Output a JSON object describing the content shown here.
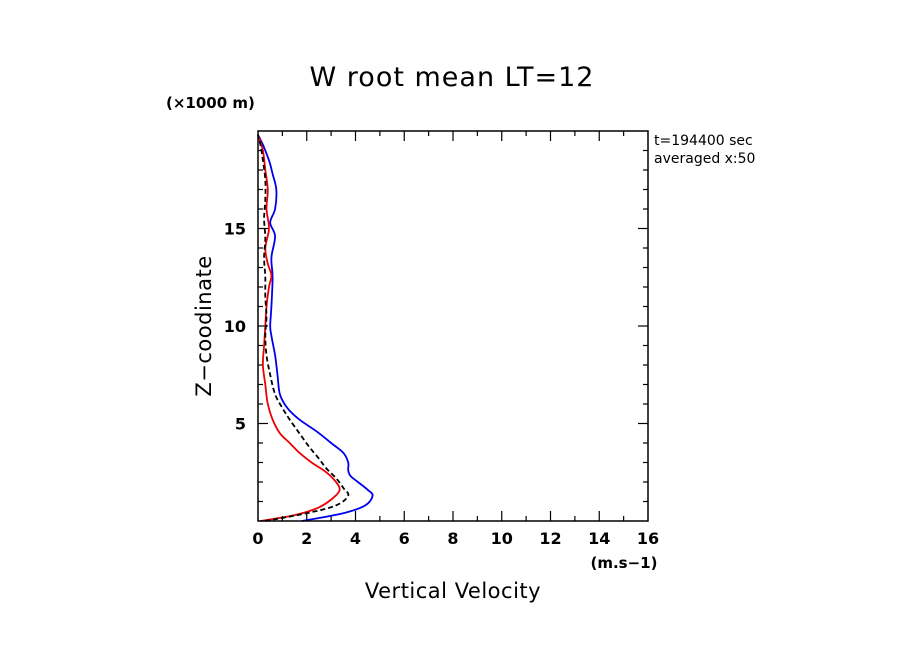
{
  "chart_data": {
    "type": "line",
    "title": "W root mean LT=12",
    "xlabel": "Vertical Velocity",
    "x_unit": "(m.s−1)",
    "ylabel": "Z−coodinate",
    "y_unit": "(×1000 m)",
    "annotations": [
      "t=194400 sec",
      "averaged  x:50"
    ],
    "xlim": [
      0,
      16
    ],
    "ylim": [
      0,
      20
    ],
    "x_ticks": [
      0,
      2,
      4,
      6,
      8,
      10,
      12,
      14,
      16
    ],
    "y_ticks": [
      5,
      10,
      15
    ],
    "grid": false,
    "series": [
      {
        "color": "#0000ee",
        "dash": "solid",
        "points": [
          [
            1.8,
            0.0
          ],
          [
            3.5,
            0.4
          ],
          [
            4.4,
            0.8
          ],
          [
            4.7,
            1.3
          ],
          [
            4.5,
            1.6
          ],
          [
            4.1,
            2.0
          ],
          [
            3.8,
            2.3
          ],
          [
            3.7,
            2.6
          ],
          [
            3.7,
            3.0
          ],
          [
            3.5,
            3.5
          ],
          [
            3.0,
            4.0
          ],
          [
            2.4,
            4.6
          ],
          [
            1.7,
            5.2
          ],
          [
            1.2,
            5.8
          ],
          [
            0.9,
            6.5
          ],
          [
            0.8,
            7.5
          ],
          [
            0.7,
            8.5
          ],
          [
            0.55,
            9.5
          ],
          [
            0.5,
            10.0
          ],
          [
            0.55,
            11.0
          ],
          [
            0.6,
            12.5
          ],
          [
            0.55,
            13.5
          ],
          [
            0.7,
            14.6
          ],
          [
            0.5,
            15.3
          ],
          [
            0.7,
            16.0
          ],
          [
            0.75,
            17.0
          ],
          [
            0.6,
            17.8
          ],
          [
            0.45,
            18.5
          ],
          [
            0.2,
            19.3
          ],
          [
            0.0,
            19.8
          ]
        ]
      },
      {
        "color": "#ee0000",
        "dash": "solid",
        "points": [
          [
            0.1,
            0.0
          ],
          [
            1.5,
            0.3
          ],
          [
            2.5,
            0.7
          ],
          [
            3.1,
            1.2
          ],
          [
            3.35,
            1.6
          ],
          [
            3.2,
            2.0
          ],
          [
            2.8,
            2.5
          ],
          [
            2.2,
            3.0
          ],
          [
            1.7,
            3.5
          ],
          [
            1.3,
            4.0
          ],
          [
            0.9,
            4.5
          ],
          [
            0.6,
            5.2
          ],
          [
            0.4,
            6.0
          ],
          [
            0.3,
            7.0
          ],
          [
            0.2,
            8.0
          ],
          [
            0.25,
            9.0
          ],
          [
            0.3,
            10.0
          ],
          [
            0.35,
            11.0
          ],
          [
            0.45,
            12.0
          ],
          [
            0.55,
            12.6
          ],
          [
            0.4,
            13.2
          ],
          [
            0.3,
            14.0
          ],
          [
            0.45,
            15.0
          ],
          [
            0.35,
            16.0
          ],
          [
            0.4,
            17.0
          ],
          [
            0.3,
            18.0
          ],
          [
            0.2,
            19.0
          ],
          [
            0.0,
            19.8
          ]
        ]
      },
      {
        "color": "#000000",
        "dash": "dashed",
        "points": [
          [
            0.3,
            0.0
          ],
          [
            2.0,
            0.4
          ],
          [
            3.2,
            0.8
          ],
          [
            3.7,
            1.3
          ],
          [
            3.5,
            1.7
          ],
          [
            3.2,
            2.2
          ],
          [
            2.8,
            2.7
          ],
          [
            2.5,
            3.2
          ],
          [
            2.1,
            3.8
          ],
          [
            1.7,
            4.5
          ],
          [
            1.3,
            5.2
          ],
          [
            1.0,
            5.8
          ],
          [
            0.7,
            6.5
          ],
          [
            0.5,
            7.5
          ],
          [
            0.35,
            8.5
          ],
          [
            0.3,
            9.5
          ],
          [
            0.35,
            10.5
          ],
          [
            0.3,
            11.5
          ],
          [
            0.3,
            12.5
          ],
          [
            0.25,
            13.5
          ],
          [
            0.3,
            14.5
          ],
          [
            0.25,
            15.5
          ],
          [
            0.3,
            16.5
          ],
          [
            0.3,
            17.5
          ],
          [
            0.2,
            18.5
          ],
          [
            0.1,
            19.3
          ],
          [
            0.0,
            19.8
          ]
        ]
      }
    ]
  }
}
